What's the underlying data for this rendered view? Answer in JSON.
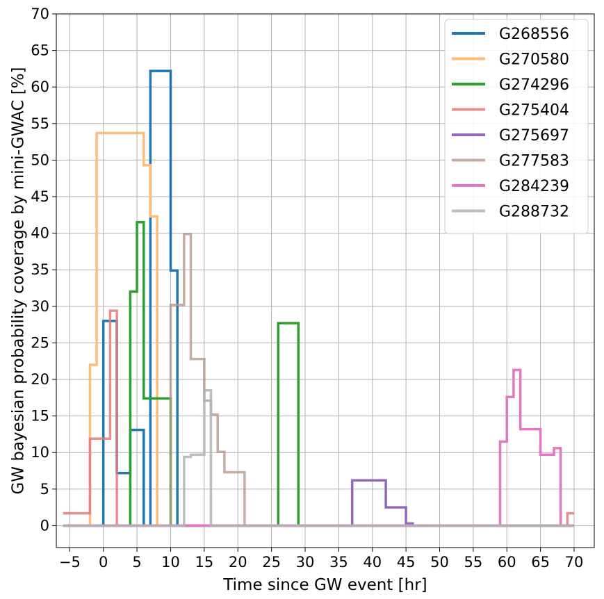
{
  "chart_data": {
    "type": "line",
    "style": "step",
    "xlabel": "Time since GW event [hr]",
    "ylabel": "GW bayesian probability coverage by mini-GWAC [%]",
    "xlim": [
      -7,
      73
    ],
    "ylim": [
      -3,
      70
    ],
    "xticks": [
      -5,
      0,
      5,
      10,
      15,
      20,
      25,
      30,
      35,
      40,
      45,
      50,
      55,
      60,
      65,
      70
    ],
    "xtick_labels": [
      "−5",
      "0",
      "5",
      "10",
      "15",
      "20",
      "25",
      "30",
      "35",
      "40",
      "45",
      "50",
      "55",
      "60",
      "65",
      "70"
    ],
    "yticks": [
      0,
      5,
      10,
      15,
      20,
      25,
      30,
      35,
      40,
      45,
      50,
      55,
      60,
      65,
      70
    ],
    "ytick_labels": [
      "0",
      "5",
      "10",
      "15",
      "20",
      "25",
      "30",
      "35",
      "40",
      "45",
      "50",
      "55",
      "60",
      "65",
      "70"
    ],
    "grid": true,
    "legend_position": "top-right",
    "series": [
      {
        "name": "G268556",
        "color": "#1f77b4",
        "alpha": 1,
        "x": [
          -6,
          0,
          0,
          2,
          2,
          4,
          4,
          6,
          6,
          7,
          7,
          10,
          10,
          11,
          11,
          70
        ],
        "y": [
          0,
          0,
          28,
          28,
          7.2,
          7.2,
          13.1,
          13.1,
          0,
          0,
          62.2,
          62.2,
          34.9,
          34.9,
          0,
          0
        ]
      },
      {
        "name": "G270580",
        "color": "#ffbb78",
        "alpha": 1,
        "x": [
          -6,
          -2,
          -2,
          -1,
          -1,
          6,
          6,
          7,
          7,
          8,
          8,
          70
        ],
        "y": [
          0,
          0,
          22,
          22,
          53.7,
          53.7,
          49.3,
          49.3,
          42.3,
          42.3,
          0,
          0
        ]
      },
      {
        "name": "G274296",
        "color": "#2ca02c",
        "alpha": 1,
        "x": [
          -6,
          4,
          4,
          5,
          5,
          6,
          6,
          10,
          10,
          26,
          26,
          29,
          29,
          70
        ],
        "y": [
          0,
          0,
          32,
          32,
          41.5,
          41.5,
          17.4,
          17.4,
          0,
          0,
          27.7,
          27.7,
          0,
          0
        ]
      },
      {
        "name": "G275404",
        "color": "#e07b7b",
        "alpha": 0.85,
        "x": [
          -6,
          -2,
          -2,
          1,
          1,
          2,
          2,
          69,
          69,
          70
        ],
        "y": [
          1.7,
          1.7,
          11.9,
          11.9,
          29.4,
          29.4,
          0,
          0,
          1.7,
          1.7
        ]
      },
      {
        "name": "G275697",
        "color": "#9467bd",
        "alpha": 1,
        "x": [
          -6,
          37,
          37,
          42,
          42,
          45,
          45,
          46,
          46,
          70
        ],
        "y": [
          0,
          0,
          6.2,
          6.2,
          2.5,
          2.5,
          0.3,
          0.3,
          0,
          0
        ]
      },
      {
        "name": "G277583",
        "color": "#b8998d",
        "alpha": 0.8,
        "x": [
          -6,
          10,
          10,
          12,
          12,
          13,
          13,
          15,
          15,
          16,
          16,
          17,
          17,
          18,
          18,
          21,
          21,
          70
        ],
        "y": [
          0,
          0,
          30.2,
          30.2,
          39.9,
          39.9,
          22.8,
          22.8,
          17.1,
          17.1,
          15.2,
          15.2,
          10.1,
          10.1,
          7.3,
          7.3,
          0,
          0
        ]
      },
      {
        "name": "G284239",
        "color": "#e377c2",
        "alpha": 1,
        "x": [
          -6,
          59,
          59,
          60,
          60,
          61,
          61,
          62,
          62,
          65,
          65,
          67,
          67,
          68,
          68,
          70
        ],
        "y": [
          0,
          0,
          11.5,
          11.5,
          17.6,
          17.6,
          21.3,
          21.3,
          13.2,
          13.2,
          9.7,
          9.7,
          10.6,
          10.6,
          0,
          0
        ]
      },
      {
        "name": "G288732",
        "color": "#b3b3b3",
        "alpha": 0.85,
        "x": [
          -6,
          12,
          12,
          13,
          13,
          15,
          15,
          16,
          16,
          70
        ],
        "y": [
          0,
          0,
          9.4,
          9.4,
          9.7,
          9.7,
          18.5,
          18.5,
          0,
          0
        ]
      }
    ]
  }
}
